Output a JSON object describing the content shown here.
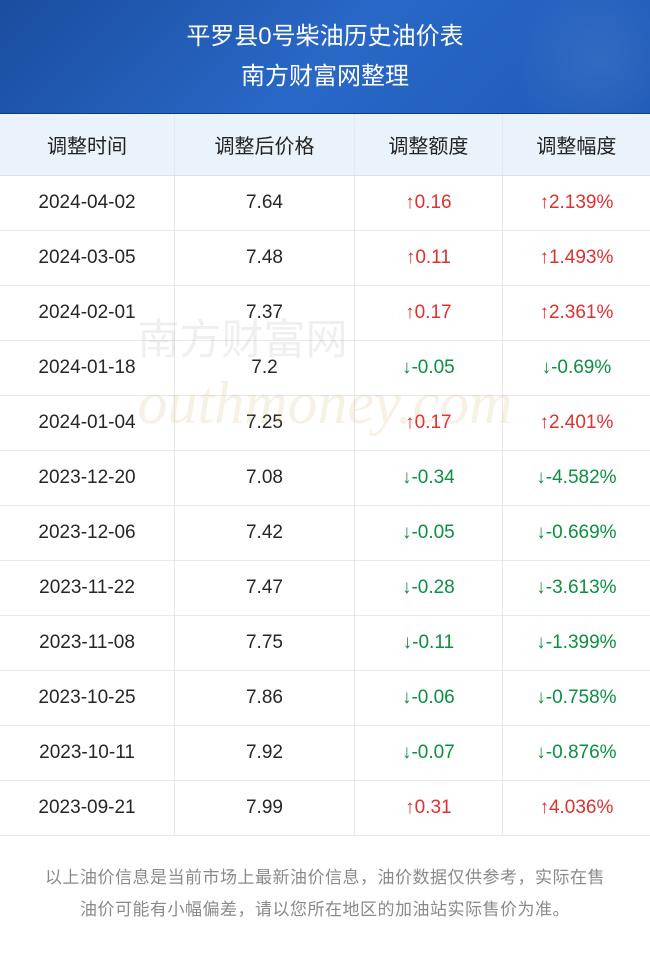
{
  "header": {
    "title": "平罗县0号柴油历史油价表",
    "subtitle": "南方财富网整理"
  },
  "columns": [
    "调整时间",
    "调整后价格",
    "调整额度",
    "调整幅度"
  ],
  "rows": [
    {
      "date": "2024-04-02",
      "price": "7.64",
      "amount": "↑0.16",
      "pct": "↑2.139%",
      "dir": "up"
    },
    {
      "date": "2024-03-05",
      "price": "7.48",
      "amount": "↑0.11",
      "pct": "↑1.493%",
      "dir": "up"
    },
    {
      "date": "2024-02-01",
      "price": "7.37",
      "amount": "↑0.17",
      "pct": "↑2.361%",
      "dir": "up"
    },
    {
      "date": "2024-01-18",
      "price": "7.2",
      "amount": "↓-0.05",
      "pct": "↓-0.69%",
      "dir": "down"
    },
    {
      "date": "2024-01-04",
      "price": "7.25",
      "amount": "↑0.17",
      "pct": "↑2.401%",
      "dir": "up"
    },
    {
      "date": "2023-12-20",
      "price": "7.08",
      "amount": "↓-0.34",
      "pct": "↓-4.582%",
      "dir": "down"
    },
    {
      "date": "2023-12-06",
      "price": "7.42",
      "amount": "↓-0.05",
      "pct": "↓-0.669%",
      "dir": "down"
    },
    {
      "date": "2023-11-22",
      "price": "7.47",
      "amount": "↓-0.28",
      "pct": "↓-3.613%",
      "dir": "down"
    },
    {
      "date": "2023-11-08",
      "price": "7.75",
      "amount": "↓-0.11",
      "pct": "↓-1.399%",
      "dir": "down"
    },
    {
      "date": "2023-10-25",
      "price": "7.86",
      "amount": "↓-0.06",
      "pct": "↓-0.758%",
      "dir": "down"
    },
    {
      "date": "2023-10-11",
      "price": "7.92",
      "amount": "↓-0.07",
      "pct": "↓-0.876%",
      "dir": "down"
    },
    {
      "date": "2023-09-21",
      "price": "7.99",
      "amount": "↑0.31",
      "pct": "↑4.036%",
      "dir": "up"
    }
  ],
  "footer": "以上油价信息是当前市场上最新油价信息，油价数据仅供参考，实际在售油价可能有小幅偏差，请以您所在地区的加油站实际售价为准。",
  "watermark": {
    "cn": "南方财富网",
    "en": "outhmoney.com"
  },
  "colors": {
    "header_bg": "#2968c7",
    "thead_bg": "#eaf3fc",
    "up": "#e03030",
    "down": "#0a9040",
    "border": "#e8e8e8",
    "text": "#262626",
    "footer_text": "#8a8a8a"
  }
}
